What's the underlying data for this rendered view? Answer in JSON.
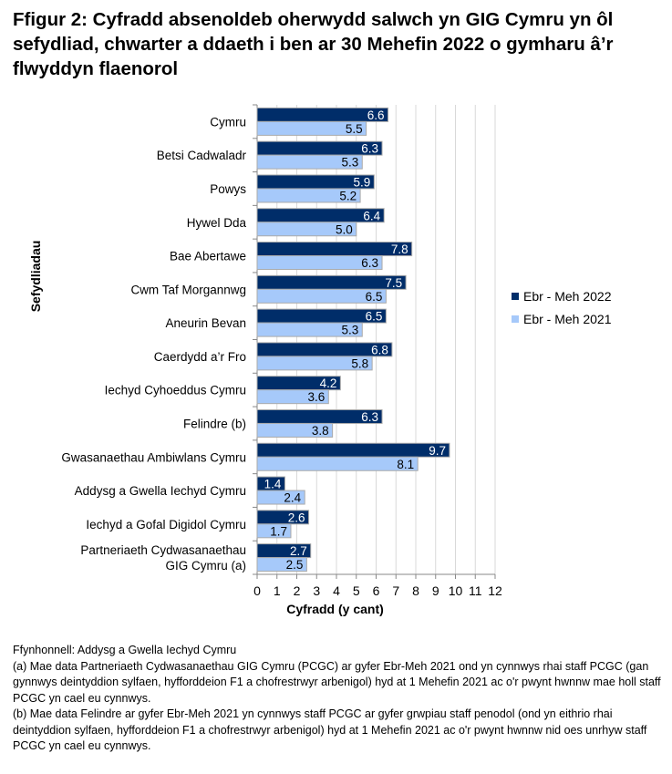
{
  "title": "Ffigur 2: Cyfradd absenoldeb oherwydd salwch yn GIG Cymru yn ôl sefydliad, chwarter a ddaeth i ben ar 30 Mehefin 2022 o gymharu â’r flwyddyn flaenorol",
  "chart_data": {
    "type": "bar",
    "orientation": "horizontal",
    "categories": [
      "Cymru",
      "Betsi Cadwaladr",
      "Powys",
      "Hywel Dda",
      "Bae Abertawe",
      "Cwm Taf Morgannwg",
      "Aneurin Bevan",
      "Caerdydd a’r Fro",
      "Iechyd Cyhoeddus Cymru",
      "Felindre (b)",
      "Gwasanaethau Ambiwlans Cymru",
      "Addysg a Gwella Iechyd Cymru",
      "Iechyd a Gofal Digidol Cymru",
      "Partneriaeth Cydwasanaethau GIG Cymru (a)"
    ],
    "series": [
      {
        "name": "Ebr - Meh 2022",
        "color": "#002d69",
        "values": [
          6.6,
          6.3,
          5.9,
          6.4,
          7.8,
          7.5,
          6.5,
          6.8,
          4.2,
          6.3,
          9.7,
          1.4,
          2.6,
          2.7
        ]
      },
      {
        "name": "Ebr - Meh 2021",
        "color": "#a6c9fa",
        "values": [
          5.5,
          5.3,
          5.2,
          5.0,
          6.3,
          6.5,
          5.3,
          5.8,
          3.6,
          3.8,
          8.1,
          2.4,
          1.7,
          2.5
        ]
      }
    ],
    "xlabel": "Cyfradd (y cant)",
    "ylabel": "Sefydliadau",
    "xlim": [
      0,
      12
    ],
    "xticks": [
      "0",
      "1",
      "2",
      "3",
      "4",
      "5",
      "6",
      "7",
      "8",
      "9",
      "10",
      "11",
      "12"
    ],
    "grid": true,
    "legend": "right"
  },
  "notes": {
    "source": "Ffynhonnell: Addysg a Gwella Iechyd Cymru",
    "a": "(a) Mae data Partneriaeth Cydwasanaethau GIG Cymru (PCGC) ar gyfer Ebr-Meh 2021 ond yn cynnwys rhai staff PCGC (gan gynnwys deintyddion sylfaen, hyfforddeion F1 a chofrestrwyr arbenigol) hyd at 1 Mehefin 2021 ac o'r pwynt hwnnw mae holl staff PCGC yn cael eu cynnwys.",
    "b": "(b) Mae data Felindre ar gyfer Ebr-Meh 2021 yn cynnwys staff PCGC ar gyfer grwpiau staff penodol (ond yn eithrio rhai deintyddion sylfaen, hyfforddeion F1 a chofrestrwyr arbenigol) hyd at 1 Mehefin 2021 ac o'r pwynt hwnnw nid oes unrhyw staff PCGC yn cael eu cynnwys."
  }
}
